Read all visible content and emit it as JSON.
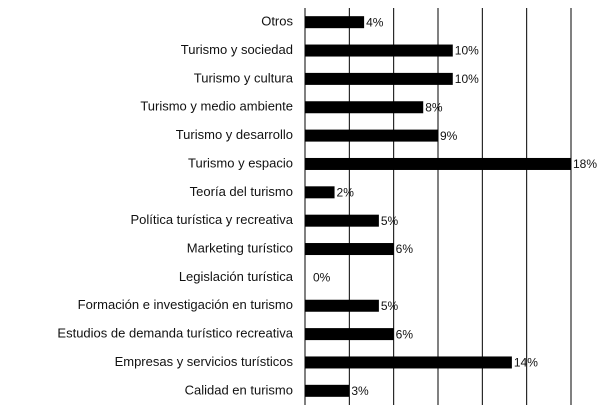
{
  "chart_data": {
    "type": "hbar",
    "categories": [
      "Otros",
      "Turismo y sociedad",
      "Turismo y cultura",
      "Turismo y medio ambiente",
      "Turismo y desarrollo",
      "Turismo y espacio",
      "Teoría del turismo",
      "Política turística y recreativa",
      "Marketing turístico",
      "Legislación turística",
      "Formación e investigación en turismo",
      "Estudios de demanda turístico recreativa",
      "Empresas y servicios turísticos",
      "Calidad en turismo"
    ],
    "values": [
      4,
      10,
      10,
      8,
      9,
      18,
      2,
      5,
      6,
      0,
      5,
      6,
      14,
      3
    ],
    "value_labels": [
      "4%",
      "10%",
      "10%",
      "8%",
      "9%",
      "18%",
      "2%",
      "5%",
      "6%",
      "0%",
      "5%",
      "6%",
      "14%",
      "3%"
    ],
    "color": "#000000",
    "xlim": [
      0,
      18
    ],
    "xticks": [
      0,
      3,
      6,
      9,
      12,
      15,
      18
    ],
    "grid": true
  }
}
